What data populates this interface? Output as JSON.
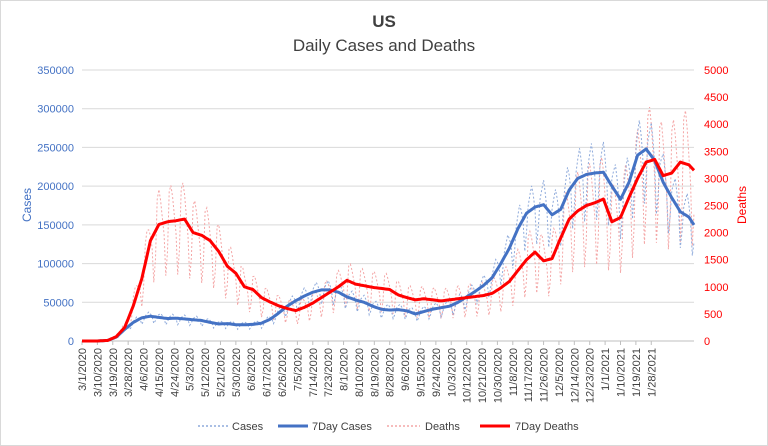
{
  "chart_data": {
    "type": "line",
    "title": "US",
    "subtitle": "Daily Cases and Deaths",
    "ylabel_left": "Cases",
    "ylabel_right": "Deaths",
    "ylim_left": [
      0,
      350000
    ],
    "ylim_right": [
      0,
      5000
    ],
    "yticks_left": [
      "0",
      "50000",
      "100000",
      "150000",
      "200000",
      "250000",
      "300000",
      "350000"
    ],
    "yticks_right": [
      "0",
      "500",
      "1000",
      "1500",
      "2000",
      "2500",
      "3000",
      "3500",
      "4000",
      "4500",
      "5000"
    ],
    "x_start": "3/1/2020",
    "x_end": "1/31/2021",
    "x_ticks": [
      "3/1/2020",
      "3/10/2020",
      "3/19/2020",
      "3/28/2020",
      "4/6/2020",
      "4/15/2020",
      "4/24/2020",
      "5/3/2020",
      "5/12/2020",
      "5/21/2020",
      "5/30/2020",
      "6/8/2020",
      "6/17/2020",
      "6/26/2020",
      "7/5/2020",
      "7/14/2020",
      "7/23/2020",
      "8/1/2020",
      "8/10/2020",
      "8/19/2020",
      "8/28/2020",
      "9/6/2020",
      "9/15/2020",
      "9/24/2020",
      "10/3/2020",
      "10/12/2020",
      "10/21/2020",
      "10/30/2020",
      "11/8/2020",
      "11/17/2020",
      "11/26/2020",
      "12/5/2020",
      "12/14/2020",
      "12/23/2020",
      "1/1/2021",
      "1/10/2021",
      "1/19/2021",
      "1/28/2021"
    ],
    "grid": "horizontal",
    "legend_position": "bottom",
    "legend": [
      "Cases",
      "7Day Cases",
      "Deaths",
      "7Day Deaths"
    ],
    "colors": {
      "cases": "#8eaadb",
      "cases_7day": "#4472c4",
      "deaths": "#f4a6a6",
      "deaths_7day": "#ff0000",
      "left_axis": "#4472c4",
      "right_axis": "#ff0000",
      "grid": "#d9d9d9",
      "text": "#404040"
    },
    "series": [
      {
        "name": "7Day Cases",
        "axis": "left",
        "points": [
          [
            0,
            0
          ],
          [
            9,
            0
          ],
          [
            15,
            800
          ],
          [
            20,
            5000
          ],
          [
            25,
            15000
          ],
          [
            30,
            24000
          ],
          [
            35,
            30000
          ],
          [
            40,
            32000
          ],
          [
            45,
            30500
          ],
          [
            50,
            29000
          ],
          [
            55,
            29500
          ],
          [
            60,
            28500
          ],
          [
            65,
            27500
          ],
          [
            70,
            26500
          ],
          [
            75,
            24000
          ],
          [
            80,
            22000
          ],
          [
            85,
            22500
          ],
          [
            90,
            21000
          ],
          [
            95,
            21000
          ],
          [
            100,
            21500
          ],
          [
            105,
            23000
          ],
          [
            110,
            28000
          ],
          [
            115,
            36000
          ],
          [
            120,
            45000
          ],
          [
            125,
            52000
          ],
          [
            130,
            58000
          ],
          [
            135,
            63000
          ],
          [
            140,
            66000
          ],
          [
            145,
            66000
          ],
          [
            150,
            63000
          ],
          [
            155,
            57000
          ],
          [
            160,
            53000
          ],
          [
            165,
            50000
          ],
          [
            170,
            45000
          ],
          [
            175,
            41000
          ],
          [
            180,
            40000
          ],
          [
            185,
            40500
          ],
          [
            190,
            39000
          ],
          [
            195,
            35000
          ],
          [
            200,
            38000
          ],
          [
            205,
            41000
          ],
          [
            210,
            43000
          ],
          [
            215,
            45000
          ],
          [
            220,
            50000
          ],
          [
            225,
            57000
          ],
          [
            230,
            64000
          ],
          [
            235,
            72000
          ],
          [
            240,
            82000
          ],
          [
            245,
            100000
          ],
          [
            250,
            120000
          ],
          [
            255,
            145000
          ],
          [
            260,
            165000
          ],
          [
            265,
            173000
          ],
          [
            270,
            176000
          ],
          [
            275,
            163000
          ],
          [
            280,
            170000
          ],
          [
            285,
            195000
          ],
          [
            290,
            210000
          ],
          [
            295,
            215000
          ],
          [
            300,
            217000
          ],
          [
            305,
            218000
          ],
          [
            310,
            200000
          ],
          [
            315,
            183000
          ],
          [
            320,
            205000
          ],
          [
            325,
            240000
          ],
          [
            330,
            248000
          ],
          [
            335,
            233000
          ],
          [
            340,
            205000
          ],
          [
            345,
            185000
          ],
          [
            350,
            167000
          ],
          [
            355,
            160000
          ],
          [
            358,
            150000
          ]
        ]
      },
      {
        "name": "7Day Deaths",
        "axis": "right",
        "points": [
          [
            0,
            0
          ],
          [
            9,
            0
          ],
          [
            15,
            10
          ],
          [
            20,
            80
          ],
          [
            25,
            250
          ],
          [
            30,
            650
          ],
          [
            35,
            1150
          ],
          [
            40,
            1850
          ],
          [
            45,
            2150
          ],
          [
            50,
            2200
          ],
          [
            55,
            2220
          ],
          [
            60,
            2250
          ],
          [
            65,
            2000
          ],
          [
            70,
            1950
          ],
          [
            75,
            1850
          ],
          [
            80,
            1650
          ],
          [
            85,
            1380
          ],
          [
            90,
            1250
          ],
          [
            95,
            1000
          ],
          [
            100,
            950
          ],
          [
            105,
            800
          ],
          [
            110,
            720
          ],
          [
            115,
            650
          ],
          [
            120,
            600
          ],
          [
            125,
            560
          ],
          [
            130,
            620
          ],
          [
            135,
            700
          ],
          [
            140,
            800
          ],
          [
            145,
            900
          ],
          [
            150,
            1000
          ],
          [
            155,
            1120
          ],
          [
            160,
            1050
          ],
          [
            165,
            1020
          ],
          [
            170,
            990
          ],
          [
            175,
            970
          ],
          [
            180,
            950
          ],
          [
            185,
            850
          ],
          [
            190,
            800
          ],
          [
            195,
            760
          ],
          [
            200,
            780
          ],
          [
            205,
            760
          ],
          [
            210,
            740
          ],
          [
            215,
            760
          ],
          [
            220,
            780
          ],
          [
            225,
            800
          ],
          [
            230,
            820
          ],
          [
            235,
            840
          ],
          [
            240,
            880
          ],
          [
            245,
            980
          ],
          [
            250,
            1100
          ],
          [
            255,
            1300
          ],
          [
            260,
            1500
          ],
          [
            265,
            1640
          ],
          [
            270,
            1480
          ],
          [
            275,
            1520
          ],
          [
            280,
            1900
          ],
          [
            285,
            2250
          ],
          [
            290,
            2400
          ],
          [
            295,
            2500
          ],
          [
            300,
            2550
          ],
          [
            305,
            2620
          ],
          [
            310,
            2200
          ],
          [
            315,
            2280
          ],
          [
            320,
            2650
          ],
          [
            325,
            3000
          ],
          [
            330,
            3300
          ],
          [
            335,
            3350
          ],
          [
            340,
            3050
          ],
          [
            345,
            3100
          ],
          [
            350,
            3300
          ],
          [
            355,
            3250
          ],
          [
            358,
            3150
          ]
        ]
      }
    ]
  }
}
